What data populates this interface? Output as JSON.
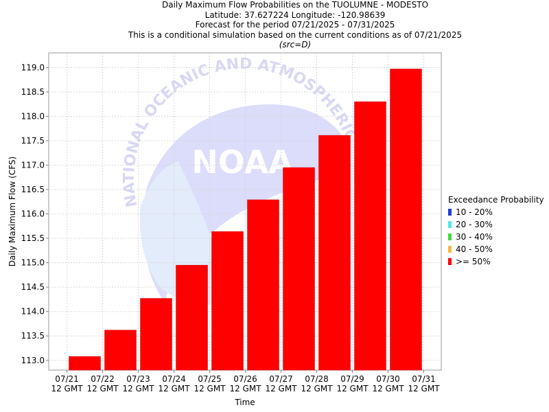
{
  "title_lines": [
    "Daily Maximum Flow Probabilities on the TUOLUMNE - MODESTO",
    "Latitude: 37.627224 Longitude: -120.98639",
    "Forecast for the period 07/21/2025 - 07/31/2025",
    "This is a conditional simulation based on the current conditions as of 07/21/2025"
  ],
  "source_note": "(src=D)",
  "watermark": {
    "ring_text": "NATIONAL OCEANIC AND ATMOSPHERIC ADMINISTRATION",
    "center_text": "NOAA"
  },
  "legend": {
    "title": "Exceedance Probability",
    "items": [
      {
        "label": "10 - 20%",
        "color": "#1f3fd6"
      },
      {
        "label": "20 - 30%",
        "color": "#4fe8f0"
      },
      {
        "label": "30 - 40%",
        "color": "#3fdc3f"
      },
      {
        "label": "40 - 50%",
        "color": "#f5b841"
      },
      {
        "label": ">= 50%",
        "color": "#ff0000"
      }
    ]
  },
  "chart_data": {
    "type": "bar",
    "ylabel": "Daily Maximum Flow (CFS)",
    "xlabel": "Time",
    "ylim": [
      112.8,
      119.3
    ],
    "y_ticks": [
      "113.0",
      "113.5",
      "114.0",
      "114.5",
      "115.0",
      "115.5",
      "116.0",
      "116.5",
      "117.0",
      "117.5",
      "118.0",
      "118.5",
      "119.0"
    ],
    "x_ticks": [
      [
        "07/21",
        "12 GMT"
      ],
      [
        "07/22",
        "12 GMT"
      ],
      [
        "07/23",
        "12 GMT"
      ],
      [
        "07/24",
        "12 GMT"
      ],
      [
        "07/25",
        "12 GMT"
      ],
      [
        "07/26",
        "12 GMT"
      ],
      [
        "07/27",
        "12 GMT"
      ],
      [
        "07/28",
        "12 GMT"
      ],
      [
        "07/29",
        "12 GMT"
      ],
      [
        "07/30",
        "12 GMT"
      ],
      [
        "07/31",
        "12 GMT"
      ]
    ],
    "series": [
      {
        "name": ">= 50%",
        "color": "#ff0000",
        "values": [
          113.08,
          113.62,
          114.27,
          114.95,
          115.64,
          116.29,
          116.95,
          117.61,
          118.3,
          118.97
        ]
      }
    ],
    "grid": true,
    "legend_position": "right"
  }
}
